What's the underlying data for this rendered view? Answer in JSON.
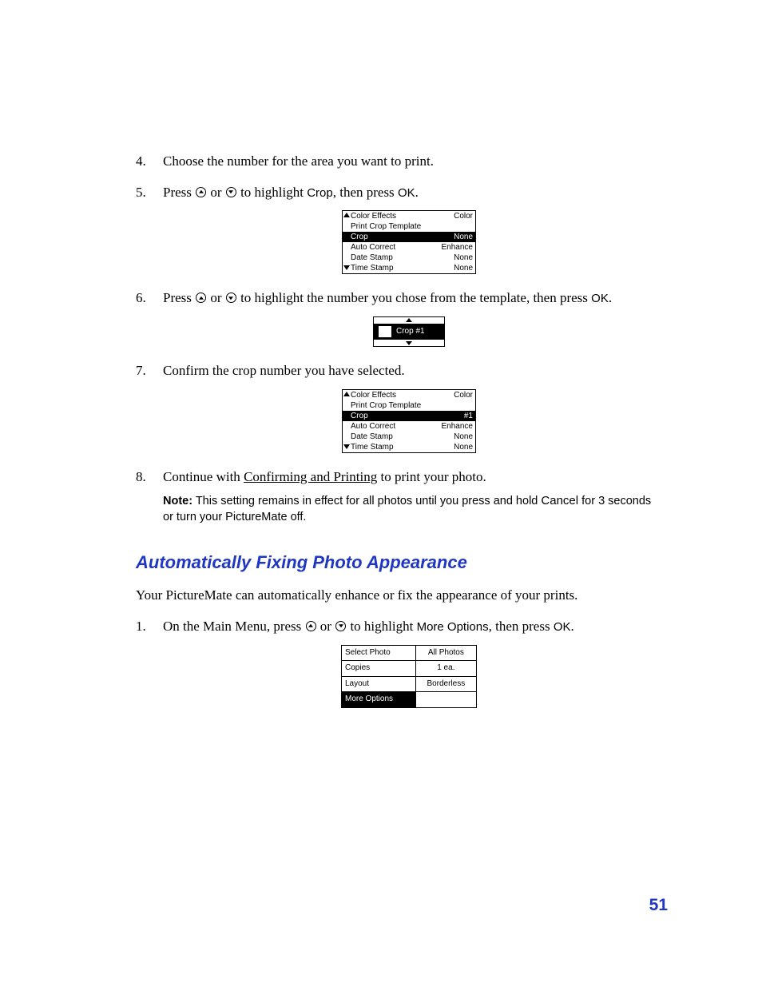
{
  "colors": {
    "heading": "#2037c4",
    "pageno": "#2037c4",
    "text": "#000000",
    "bg": "#ffffff"
  },
  "steps": {
    "s4": {
      "num": "4.",
      "text": "Choose the number for the area you want to print."
    },
    "s5": {
      "num": "5.",
      "pre": "Press ",
      "mid": " or ",
      "post1": " to highlight ",
      "crop": "Crop",
      "post2": ", then press ",
      "ok": "OK",
      "end": "."
    },
    "s6": {
      "num": "6.",
      "pre": "Press ",
      "mid": " or ",
      "post": " to highlight the number you chose from the template, then press ",
      "ok": "OK",
      "end": "."
    },
    "s7": {
      "num": "7.",
      "text": "Confirm the crop number you have selected."
    },
    "s8": {
      "num": "8.",
      "pre": "Continue with ",
      "link": "Confirming and Printing",
      "post": " to print your photo."
    }
  },
  "note": {
    "label": "Note:",
    "t1": " This setting remains in effect for all photos until you press and hold ",
    "cancel": "Cancel",
    "t2": " for 3 seconds or turn your PictureMate off."
  },
  "section_heading": "Automatically Fixing Photo Appearance",
  "intro": "Your PictureMate can automatically enhance or fix the appearance of your prints.",
  "steps2": {
    "s1": {
      "num": "1.",
      "pre": "On the Main Menu, press ",
      "mid": " or ",
      "post1": " to highlight ",
      "more": "More Options",
      "post2": ", then press ",
      "ok": "OK",
      "end": "."
    }
  },
  "lcd1": [
    {
      "label": "Color Effects",
      "value": "Color",
      "arrow": "up"
    },
    {
      "label": "Print Crop Template",
      "value": ""
    },
    {
      "label": "Crop",
      "value": "None",
      "selected": true
    },
    {
      "label": "Auto Correct",
      "value": "Enhance"
    },
    {
      "label": "Date Stamp",
      "value": "None"
    },
    {
      "label": "Time Stamp",
      "value": "None",
      "arrow": "down"
    }
  ],
  "lcd_crop_label": "Crop #1",
  "lcd2": [
    {
      "label": "Color Effects",
      "value": "Color",
      "arrow": "up"
    },
    {
      "label": "Print Crop Template",
      "value": ""
    },
    {
      "label": "Crop",
      "value": "#1",
      "selected": true
    },
    {
      "label": "Auto Correct",
      "value": "Enhance"
    },
    {
      "label": "Date Stamp",
      "value": "None"
    },
    {
      "label": "Time Stamp",
      "value": "None",
      "arrow": "down"
    }
  ],
  "main_menu": [
    {
      "label": "Select Photo",
      "value": "All Photos"
    },
    {
      "label": "Copies",
      "value": "1 ea."
    },
    {
      "label": "Layout",
      "value": "Borderless"
    },
    {
      "label": "More Options",
      "value": "",
      "selected": true
    }
  ],
  "page_number": "51"
}
